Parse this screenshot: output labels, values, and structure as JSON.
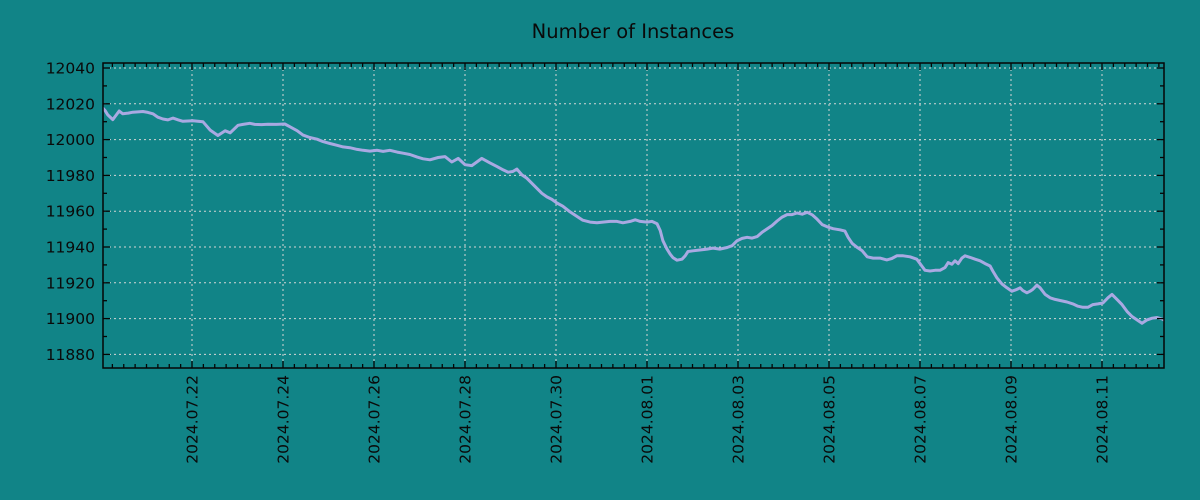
{
  "page": {
    "background": "#118487"
  },
  "chart_data": {
    "type": "line",
    "title": "Number of Instances",
    "grid": {
      "show": true,
      "color": "#d6d6d6",
      "style": "dashed"
    },
    "frame_color": "#050505",
    "text_color": "#0a0a0a",
    "legend": "none",
    "x_axis": {
      "unit": "days since 2024-07-20 00:00",
      "range": [
        0.044,
        23.36
      ],
      "minor_tick_interval": 0.25,
      "label_rotation": -90,
      "major_ticks": [
        {
          "t": 2,
          "label": "2024.07.22"
        },
        {
          "t": 4,
          "label": "2024.07.24"
        },
        {
          "t": 6,
          "label": "2024.07.26"
        },
        {
          "t": 8,
          "label": "2024.07.28"
        },
        {
          "t": 10,
          "label": "2024.07.30"
        },
        {
          "t": 12,
          "label": "2024.08.01"
        },
        {
          "t": 14,
          "label": "2024.08.03"
        },
        {
          "t": 16,
          "label": "2024.08.05"
        },
        {
          "t": 18,
          "label": "2024.08.07"
        },
        {
          "t": 20,
          "label": "2024.08.09"
        },
        {
          "t": 22,
          "label": "2024.08.11"
        }
      ]
    },
    "y_axis": {
      "range": [
        11872,
        12043
      ],
      "minor_tick_interval": 10,
      "major_ticks": [
        12040,
        12020,
        12000,
        11980,
        11960,
        11940,
        11920,
        11900,
        11880
      ]
    },
    "series": [
      {
        "name": "instances",
        "color": "#a9a9e2",
        "width": 3,
        "points": [
          [
            0.044,
            12017.5
          ],
          [
            0.09,
            12016.2
          ],
          [
            0.15,
            12013.8
          ],
          [
            0.26,
            12011.2
          ],
          [
            0.4,
            12016.0
          ],
          [
            0.48,
            12014.4
          ],
          [
            0.6,
            12014.8
          ],
          [
            0.7,
            12015.3
          ],
          [
            0.81,
            12015.5
          ],
          [
            0.92,
            12015.7
          ],
          [
            1.03,
            12015.2
          ],
          [
            1.14,
            12014.4
          ],
          [
            1.25,
            12012.5
          ],
          [
            1.36,
            12011.5
          ],
          [
            1.47,
            12011.0
          ],
          [
            1.58,
            12012.0
          ],
          [
            1.7,
            12011.0
          ],
          [
            1.8,
            12010.2
          ],
          [
            1.91,
            12010.4
          ],
          [
            2.02,
            12010.5
          ],
          [
            2.13,
            12010.2
          ],
          [
            2.24,
            12010.0
          ],
          [
            2.4,
            12005.3
          ],
          [
            2.57,
            12002.3
          ],
          [
            2.73,
            12004.9
          ],
          [
            2.84,
            12003.8
          ],
          [
            3.01,
            12008.0
          ],
          [
            3.12,
            12008.5
          ],
          [
            3.27,
            12009.1
          ],
          [
            3.38,
            12008.5
          ],
          [
            3.53,
            12008.4
          ],
          [
            3.67,
            12008.6
          ],
          [
            3.85,
            12008.5
          ],
          [
            4.04,
            12008.7
          ],
          [
            4.15,
            12007.2
          ],
          [
            4.31,
            12005.0
          ],
          [
            4.44,
            12002.5
          ],
          [
            4.59,
            12001.2
          ],
          [
            4.75,
            12000.2
          ],
          [
            4.88,
            11998.9
          ],
          [
            5.03,
            11997.8
          ],
          [
            5.19,
            11996.8
          ],
          [
            5.32,
            11995.9
          ],
          [
            5.47,
            11995.5
          ],
          [
            5.63,
            11994.5
          ],
          [
            5.76,
            11994.0
          ],
          [
            5.91,
            11993.6
          ],
          [
            6.07,
            11994.0
          ],
          [
            6.2,
            11993.4
          ],
          [
            6.35,
            11994.0
          ],
          [
            6.51,
            11993.0
          ],
          [
            6.64,
            11992.4
          ],
          [
            6.79,
            11991.7
          ],
          [
            6.95,
            11990.2
          ],
          [
            7.08,
            11989.3
          ],
          [
            7.23,
            11988.7
          ],
          [
            7.41,
            11990.0
          ],
          [
            7.56,
            11990.5
          ],
          [
            7.71,
            11987.5
          ],
          [
            7.85,
            11989.5
          ],
          [
            8.0,
            11986.0
          ],
          [
            8.15,
            11985.5
          ],
          [
            8.37,
            11989.5
          ],
          [
            8.55,
            11987.0
          ],
          [
            8.7,
            11985.0
          ],
          [
            8.84,
            11983.1
          ],
          [
            8.95,
            11981.8
          ],
          [
            9.05,
            11982.2
          ],
          [
            9.14,
            11983.5
          ],
          [
            9.25,
            11980.3
          ],
          [
            9.36,
            11978.4
          ],
          [
            9.47,
            11975.6
          ],
          [
            9.58,
            11972.8
          ],
          [
            9.69,
            11970.0
          ],
          [
            9.8,
            11968.0
          ],
          [
            9.91,
            11966.6
          ],
          [
            10.02,
            11964.6
          ],
          [
            10.15,
            11962.8
          ],
          [
            10.31,
            11959.6
          ],
          [
            10.46,
            11957.1
          ],
          [
            10.59,
            11955.0
          ],
          [
            10.75,
            11953.9
          ],
          [
            10.9,
            11953.5
          ],
          [
            11.03,
            11953.9
          ],
          [
            11.19,
            11954.3
          ],
          [
            11.34,
            11954.3
          ],
          [
            11.47,
            11953.5
          ],
          [
            11.63,
            11954.3
          ],
          [
            11.74,
            11955.2
          ],
          [
            11.85,
            11954.3
          ],
          [
            12.0,
            11953.9
          ],
          [
            12.11,
            11954.3
          ],
          [
            12.22,
            11953.0
          ],
          [
            12.29,
            11949.2
          ],
          [
            12.35,
            11943.5
          ],
          [
            12.44,
            11938.8
          ],
          [
            12.51,
            11936.0
          ],
          [
            12.57,
            11934.1
          ],
          [
            12.66,
            11932.6
          ],
          [
            12.77,
            11933.2
          ],
          [
            12.84,
            11935.1
          ],
          [
            12.9,
            11937.5
          ],
          [
            13.01,
            11937.9
          ],
          [
            13.16,
            11938.3
          ],
          [
            13.32,
            11938.8
          ],
          [
            13.45,
            11939.4
          ],
          [
            13.6,
            11938.8
          ],
          [
            13.76,
            11939.7
          ],
          [
            13.87,
            11940.7
          ],
          [
            13.98,
            11943.5
          ],
          [
            14.09,
            11944.8
          ],
          [
            14.2,
            11945.4
          ],
          [
            14.31,
            11945.0
          ],
          [
            14.42,
            11945.8
          ],
          [
            14.53,
            11948.2
          ],
          [
            14.64,
            11950.1
          ],
          [
            14.75,
            11952.0
          ],
          [
            14.86,
            11954.5
          ],
          [
            14.97,
            11956.7
          ],
          [
            15.08,
            11958.1
          ],
          [
            15.19,
            11958.1
          ],
          [
            15.3,
            11959.0
          ],
          [
            15.41,
            11958.3
          ],
          [
            15.52,
            11959.4
          ],
          [
            15.63,
            11958.0
          ],
          [
            15.74,
            11955.5
          ],
          [
            15.85,
            11952.5
          ],
          [
            15.96,
            11951.3
          ],
          [
            16.09,
            11950.2
          ],
          [
            16.24,
            11949.6
          ],
          [
            16.35,
            11948.9
          ],
          [
            16.42,
            11945.4
          ],
          [
            16.51,
            11942.0
          ],
          [
            16.62,
            11939.8
          ],
          [
            16.73,
            11937.9
          ],
          [
            16.84,
            11934.5
          ],
          [
            16.97,
            11933.8
          ],
          [
            17.12,
            11933.8
          ],
          [
            17.27,
            11932.8
          ],
          [
            17.38,
            11933.6
          ],
          [
            17.49,
            11935.1
          ],
          [
            17.63,
            11935.1
          ],
          [
            17.78,
            11934.5
          ],
          [
            17.93,
            11933.2
          ],
          [
            18.04,
            11929.4
          ],
          [
            18.11,
            11927.0
          ],
          [
            18.22,
            11926.6
          ],
          [
            18.33,
            11927.0
          ],
          [
            18.44,
            11927.0
          ],
          [
            18.55,
            11928.5
          ],
          [
            18.62,
            11931.3
          ],
          [
            18.7,
            11930.4
          ],
          [
            18.77,
            11932.3
          ],
          [
            18.84,
            11930.7
          ],
          [
            18.92,
            11933.8
          ],
          [
            18.99,
            11935.1
          ],
          [
            19.1,
            11934.2
          ],
          [
            19.21,
            11933.2
          ],
          [
            19.32,
            11932.3
          ],
          [
            19.43,
            11930.7
          ],
          [
            19.54,
            11929.4
          ],
          [
            19.6,
            11926.6
          ],
          [
            19.69,
            11922.8
          ],
          [
            19.8,
            11919.4
          ],
          [
            19.91,
            11917.2
          ],
          [
            20.02,
            11915.3
          ],
          [
            20.13,
            11916.3
          ],
          [
            20.2,
            11917.2
          ],
          [
            20.26,
            11915.7
          ],
          [
            20.35,
            11914.4
          ],
          [
            20.42,
            11915.3
          ],
          [
            20.48,
            11916.3
          ],
          [
            20.57,
            11918.7
          ],
          [
            20.64,
            11917.2
          ],
          [
            20.75,
            11913.5
          ],
          [
            20.86,
            11911.6
          ],
          [
            20.97,
            11910.7
          ],
          [
            21.08,
            11910.1
          ],
          [
            21.23,
            11909.3
          ],
          [
            21.36,
            11908.2
          ],
          [
            21.47,
            11906.9
          ],
          [
            21.58,
            11906.3
          ],
          [
            21.69,
            11906.3
          ],
          [
            21.8,
            11907.8
          ],
          [
            21.91,
            11908.2
          ],
          [
            22.02,
            11908.7
          ],
          [
            22.13,
            11911.6
          ],
          [
            22.22,
            11913.5
          ],
          [
            22.33,
            11910.7
          ],
          [
            22.44,
            11907.8
          ],
          [
            22.55,
            11904.0
          ],
          [
            22.66,
            11901.2
          ],
          [
            22.77,
            11899.3
          ],
          [
            22.88,
            11897.4
          ],
          [
            22.99,
            11899.3
          ],
          [
            23.1,
            11900.2
          ],
          [
            23.21,
            11900.6
          ],
          [
            23.32,
            11899.8
          ],
          [
            23.36,
            11899.2
          ]
        ]
      }
    ]
  }
}
